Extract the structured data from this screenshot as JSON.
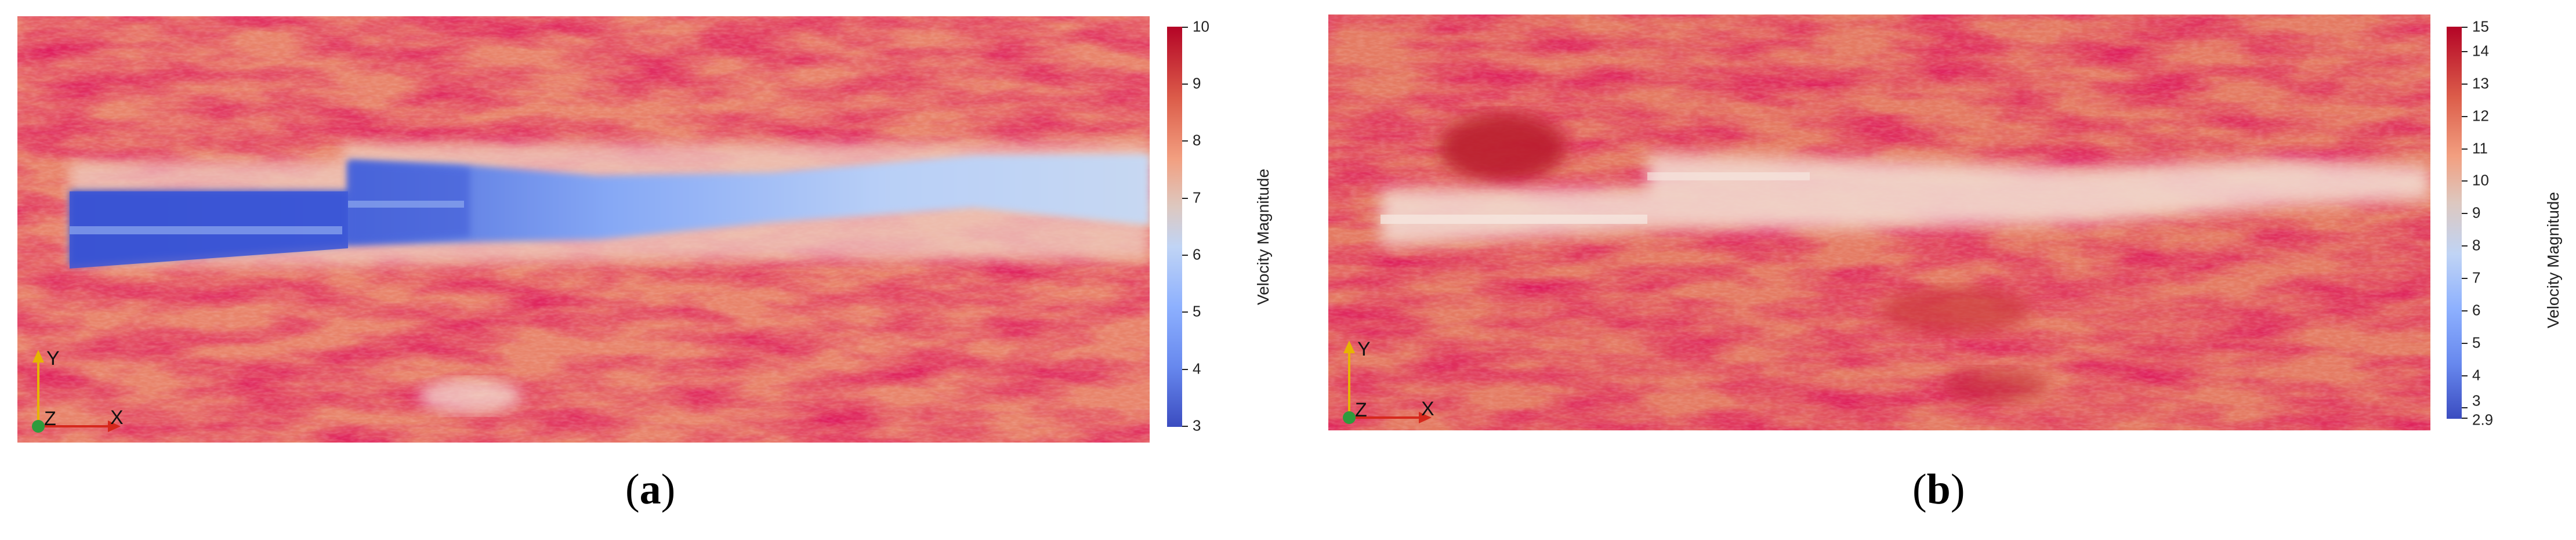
{
  "panels": [
    {
      "id": "a",
      "caption_letter": "a",
      "colorbar": {
        "title": "Velocity Magnitude",
        "ticks": [
          "10",
          "9",
          "8",
          "7",
          "6",
          "5",
          "4",
          "3"
        ],
        "range": [
          3,
          10
        ]
      },
      "axes": {
        "x": "X",
        "y": "Y",
        "z": "Z"
      }
    },
    {
      "id": "b",
      "caption_letter": "b",
      "colorbar": {
        "title": "Velocity Magnitude",
        "ticks": [
          "15",
          "14",
          "13",
          "12",
          "11",
          "10",
          "9",
          "8",
          "7",
          "6",
          "5",
          "4",
          "3",
          "2.9"
        ],
        "range": [
          2.9,
          15
        ]
      },
      "axes": {
        "x": "X",
        "y": "Y",
        "z": "Z"
      }
    }
  ],
  "colors": {
    "high": "#b40426",
    "mid_high": "#e8775c",
    "neutral": "#dddcdc",
    "mid_low": "#9abbff",
    "low": "#3b4cc0"
  }
}
